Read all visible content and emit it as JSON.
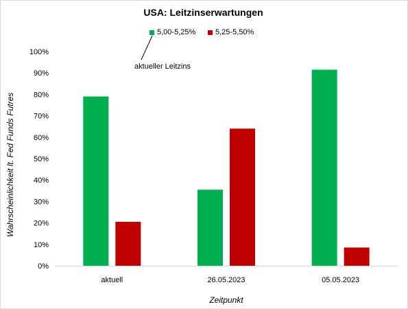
{
  "chart_data": {
    "type": "bar",
    "title": "USA: Leitzinserwartungen",
    "xlabel": "Zeitpunkt",
    "ylabel": "Wahrscheinlichkeit lt. Fed Funds Futres",
    "categories": [
      "aktuell",
      "26.05.2023",
      "05.05.2023"
    ],
    "series": [
      {
        "name": "5,00-5,25%",
        "color": "#00b050",
        "values": [
          79,
          35.5,
          91.5
        ]
      },
      {
        "name": "5,25-5,50%",
        "color": "#c00000",
        "values": [
          20.5,
          64,
          8.5
        ]
      }
    ],
    "ylim": [
      0,
      100
    ],
    "yticks": [
      "0%",
      "10%",
      "20%",
      "30%",
      "40%",
      "50%",
      "60%",
      "70%",
      "80%",
      "90%",
      "100%"
    ],
    "grid": false,
    "legend": "top-center",
    "annotation": "aktueller Leitzins"
  }
}
